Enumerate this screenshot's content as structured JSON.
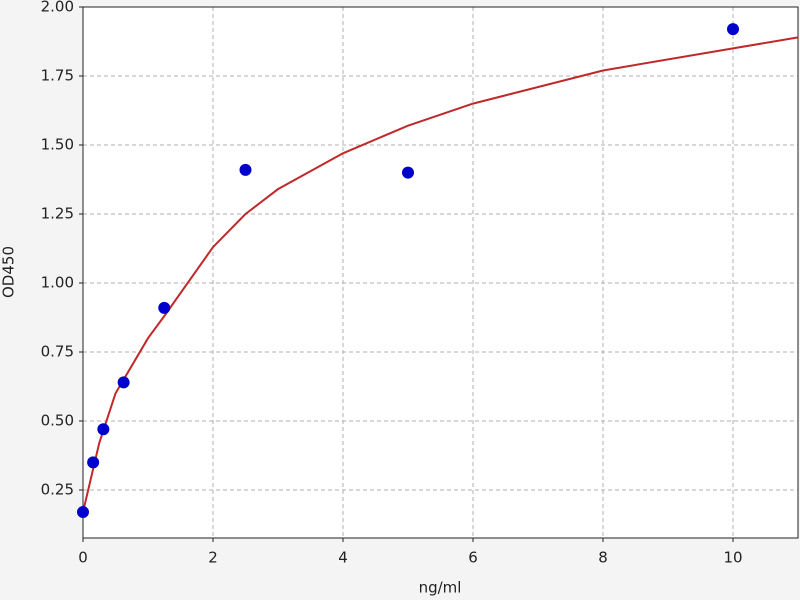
{
  "chart_data": {
    "type": "scatter",
    "xlabel": "ng/ml",
    "ylabel": "OD450",
    "xlim": [
      0,
      11
    ],
    "ylim": [
      0.076,
      2.0
    ],
    "xticks": [
      0,
      2,
      4,
      6,
      8,
      10
    ],
    "yticks": [
      {
        "value": 0.25,
        "label": "0.25"
      },
      {
        "value": 0.5,
        "label": "0.50"
      },
      {
        "value": 0.75,
        "label": "0.75"
      },
      {
        "value": 1,
        "label": "1.00"
      },
      {
        "value": 1.25,
        "label": "1.25"
      },
      {
        "value": 1.5,
        "label": "1.50"
      },
      {
        "value": 1.75,
        "label": "1.75"
      },
      {
        "value": 2,
        "label": "2.00"
      }
    ],
    "grid": true,
    "series": [
      {
        "kind": "points",
        "color": "#0000cc",
        "x": [
          0,
          0.156,
          0.313,
          0.625,
          1.25,
          2.5,
          5,
          10
        ],
        "values": [
          0.17,
          0.35,
          0.47,
          0.64,
          0.91,
          1.41,
          1.4,
          1.92
        ]
      },
      {
        "kind": "curve",
        "color": "#c0282a",
        "x": [
          0,
          0.25,
          0.5,
          1,
          1.25,
          2,
          2.5,
          3,
          4,
          5,
          6,
          8,
          10,
          11
        ],
        "values": [
          0.17,
          0.42,
          0.6,
          0.8,
          0.88,
          1.13,
          1.25,
          1.34,
          1.47,
          1.57,
          1.65,
          1.77,
          1.85,
          1.89
        ]
      }
    ]
  }
}
